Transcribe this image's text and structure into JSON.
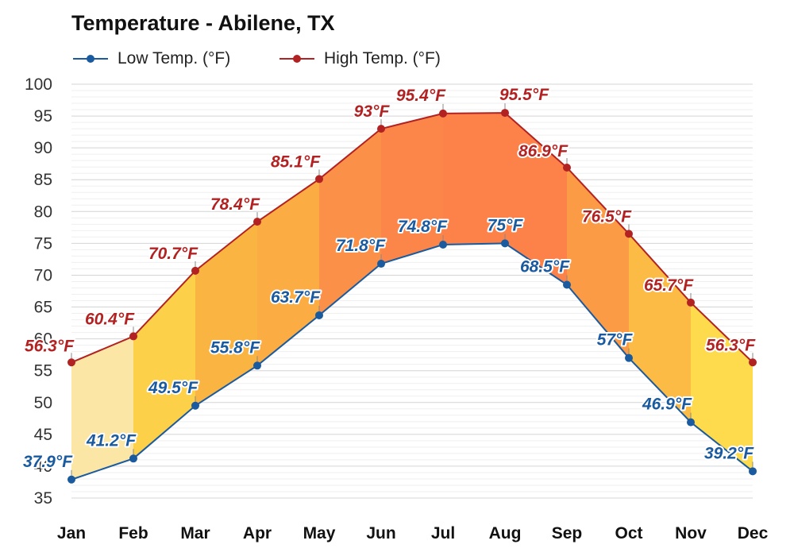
{
  "chart_data": {
    "type": "line",
    "title": "Temperature - Abilene, TX",
    "categories": [
      "Jan",
      "Feb",
      "Mar",
      "Apr",
      "May",
      "Jun",
      "Jul",
      "Aug",
      "Sep",
      "Oct",
      "Nov",
      "Dec"
    ],
    "series": [
      {
        "name": "Low Temp. (°F)",
        "color": "#1a5a9e",
        "values": [
          37.9,
          41.2,
          49.5,
          55.8,
          63.7,
          71.8,
          74.8,
          75,
          68.5,
          57,
          46.9,
          39.2
        ],
        "labels": [
          "37.9°F",
          "41.2°F",
          "49.5°F",
          "55.8°F",
          "63.7°F",
          "71.8°F",
          "74.8°F",
          "75°F",
          "68.5°F",
          "57°F",
          "46.9°F",
          "39.2°F"
        ]
      },
      {
        "name": "High Temp. (°F)",
        "color": "#b22222",
        "values": [
          56.3,
          60.4,
          70.7,
          78.4,
          85.1,
          93,
          95.4,
          95.5,
          86.9,
          76.5,
          65.7,
          56.3
        ],
        "labels": [
          "56.3°F",
          "60.4°F",
          "70.7°F",
          "78.4°F",
          "85.1°F",
          "93°F",
          "95.4°F",
          "95.5°F",
          "86.9°F",
          "76.5°F",
          "65.7°F",
          "56.3°F"
        ]
      }
    ],
    "band_colors": [
      "#fbe6a6",
      "#fdd04a",
      "#fab442",
      "#fbac42",
      "#fb9148",
      "#fc8649",
      "#fd824a",
      "#fd824a",
      "#fb9b45",
      "#fbbb44",
      "#fedb4c",
      "#b4e8fc"
    ],
    "yticks": [
      "35",
      "40",
      "45",
      "50",
      "55",
      "60",
      "65",
      "70",
      "75",
      "80",
      "85",
      "90",
      "95",
      "100"
    ],
    "ylim": [
      35,
      100
    ],
    "grid": true,
    "legend": "top-left"
  }
}
